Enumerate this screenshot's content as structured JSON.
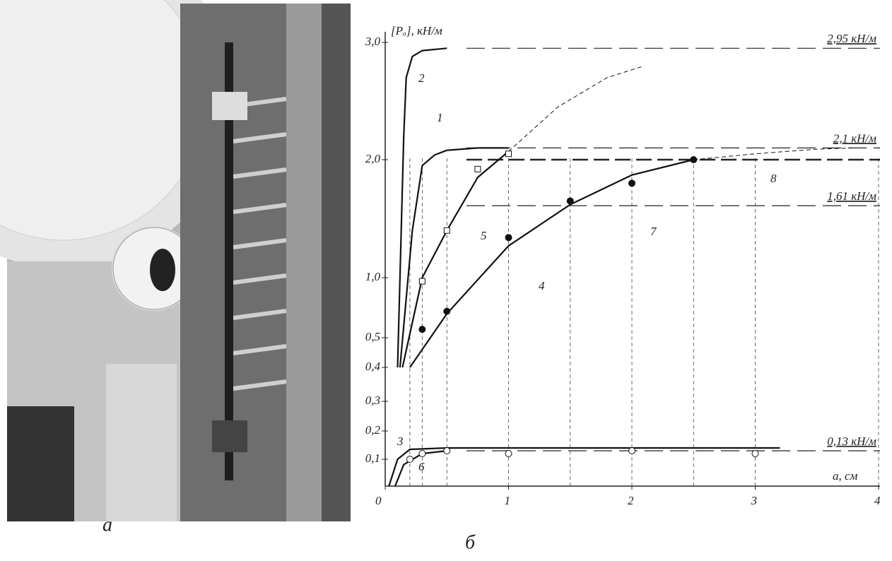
{
  "captions": {
    "photo": "а",
    "chart": "б"
  },
  "chart_data": {
    "type": "line",
    "y_label": "[Pₒ], кН/м",
    "x_label": "a, см",
    "xlim": [
      0,
      4
    ],
    "xticks": [
      0,
      1,
      2,
      3,
      4
    ],
    "ylim": [
      0,
      3.0
    ],
    "yticks": [
      {
        "value": 0.1,
        "label": "0,1"
      },
      {
        "value": 0.2,
        "label": "0,2"
      },
      {
        "value": 0.3,
        "label": "0,3"
      },
      {
        "value": 0.4,
        "label": "0,4"
      },
      {
        "value": 0.5,
        "label": "0,5"
      },
      {
        "value": 1.0,
        "label": "1,0"
      },
      {
        "value": 2.0,
        "label": "2,0"
      },
      {
        "value": 3.0,
        "label": "3,0"
      }
    ],
    "series": [
      {
        "name": "2",
        "style": "solid",
        "x": [
          0.1,
          0.15,
          0.17,
          0.22,
          0.3,
          0.5
        ],
        "y": [
          0.4,
          2.2,
          2.7,
          2.88,
          2.93,
          2.95
        ]
      },
      {
        "name": "1",
        "style": "solid",
        "x": [
          0.12,
          0.22,
          0.3,
          0.4,
          0.5,
          0.75,
          1.0
        ],
        "y": [
          0.4,
          1.4,
          1.95,
          2.04,
          2.08,
          2.1,
          2.1
        ]
      },
      {
        "name": "5",
        "style": "solid",
        "x": [
          0.14,
          0.3,
          0.5,
          0.75,
          1.0
        ],
        "y": [
          0.4,
          1.0,
          1.4,
          1.85,
          2.07
        ]
      },
      {
        "name": "4",
        "style": "solid",
        "x": [
          0.2,
          0.5,
          1.0,
          1.5,
          2.0,
          2.5
        ],
        "y": [
          0.4,
          0.7,
          1.27,
          1.62,
          1.87,
          2.0
        ]
      },
      {
        "name": "3",
        "style": "solid",
        "x": [
          0.03,
          0.1,
          0.2,
          0.5,
          3.2
        ],
        "y": [
          0,
          0.1,
          0.135,
          0.14,
          0.14
        ]
      },
      {
        "name": "6",
        "style": "solid",
        "x": [
          0.08,
          0.15,
          0.3,
          0.5
        ],
        "y": [
          0,
          0.08,
          0.12,
          0.13
        ]
      },
      {
        "style": "dashed",
        "x": [
          1.0,
          1.4,
          1.8,
          2.1
        ],
        "y": [
          2.07,
          2.45,
          2.7,
          2.8
        ]
      },
      {
        "style": "dashed",
        "x": [
          2.5,
          3.0,
          3.5,
          3.8
        ],
        "y": [
          2.0,
          2.05,
          2.09,
          2.1
        ]
      }
    ],
    "points": [
      {
        "marker": "square",
        "x": [
          0.3,
          0.5,
          0.75,
          1.0
        ],
        "y": [
          0.97,
          1.4,
          1.92,
          2.05
        ]
      },
      {
        "marker": "filled-circle",
        "x": [
          0.3,
          0.5,
          1.0,
          1.5,
          2.0,
          2.5
        ],
        "y": [
          0.57,
          0.72,
          1.34,
          1.65,
          1.8,
          2.0
        ]
      },
      {
        "marker": "open-circle",
        "x": [
          0.2,
          0.3,
          0.5,
          1.0,
          2.0,
          3.0
        ],
        "y": [
          0.1,
          0.12,
          0.13,
          0.12,
          0.13,
          0.12
        ]
      }
    ],
    "reference_lines": [
      {
        "value": 2.95,
        "label": "2,95 кН/м"
      },
      {
        "value": 2.1,
        "label": "2,1 кН/м"
      },
      {
        "value": 2.0,
        "name": "8"
      },
      {
        "value": 1.61,
        "label": "1,61 кН/м",
        "name": "7"
      },
      {
        "value": 0.13,
        "label": "0,13 кН/м"
      }
    ],
    "guides": [
      0.2,
      0.3,
      0.5,
      1.0,
      1.5,
      2.0,
      2.5,
      3.0,
      4.0
    ]
  }
}
